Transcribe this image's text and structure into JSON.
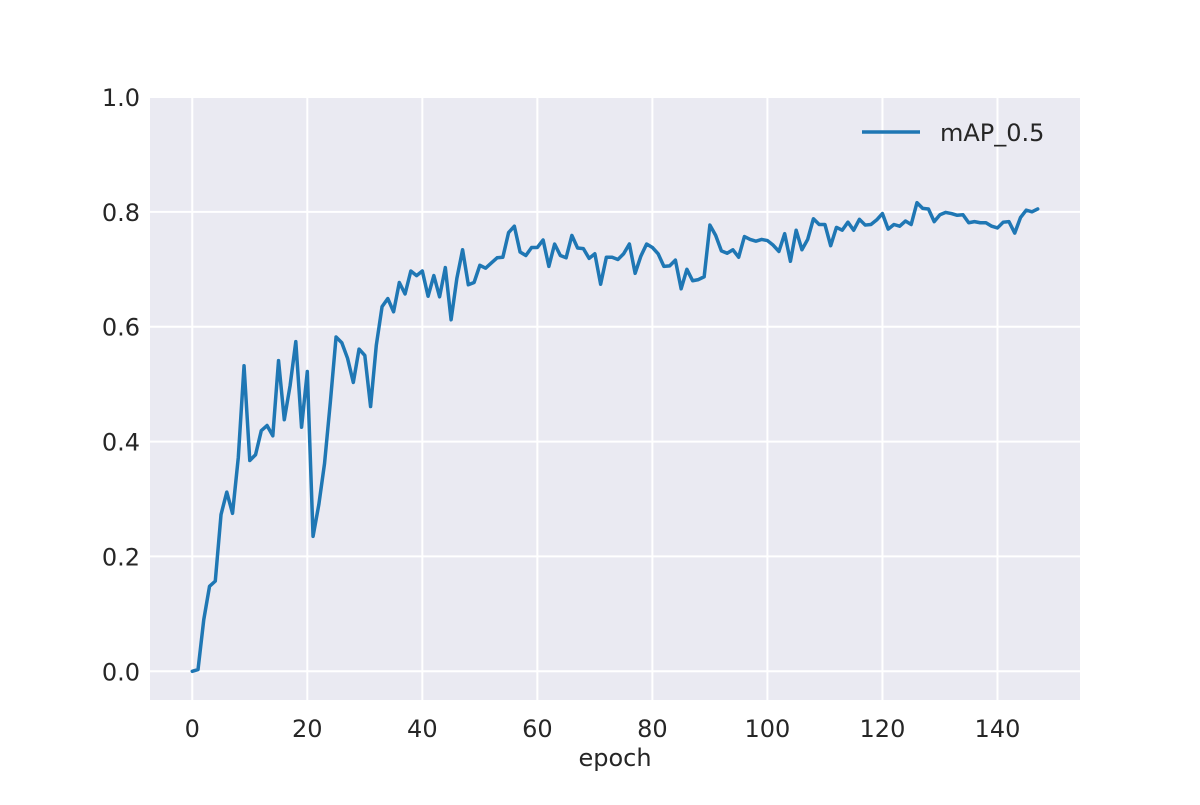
{
  "chart_data": {
    "type": "line",
    "title": "",
    "xlabel": "epoch",
    "ylabel": "",
    "xlim": [
      -7.35,
      154.35
    ],
    "ylim": [
      -0.05,
      1.0
    ],
    "xticks": [
      0,
      20,
      40,
      60,
      80,
      100,
      120,
      140
    ],
    "yticks": [
      0.0,
      0.2,
      0.4,
      0.6,
      0.8,
      1.0
    ],
    "xtick_labels": [
      "0",
      "20",
      "40",
      "60",
      "80",
      "100",
      "120",
      "140"
    ],
    "ytick_labels": [
      "0.0",
      "0.2",
      "0.4",
      "0.6",
      "0.8",
      "1.0"
    ],
    "grid": true,
    "legend_position": "top-right",
    "colors": {
      "background": "#eaeaf2",
      "grid": "#ffffff",
      "series": "#1f77b4"
    },
    "series": [
      {
        "name": "mAP_0.5",
        "x": [
          0,
          1,
          2,
          3,
          4,
          5,
          6,
          7,
          8,
          9,
          10,
          11,
          12,
          13,
          14,
          15,
          16,
          17,
          18,
          19,
          20,
          21,
          22,
          23,
          24,
          25,
          26,
          27,
          28,
          29,
          30,
          31,
          32,
          33,
          34,
          35,
          36,
          37,
          38,
          39,
          40,
          41,
          42,
          43,
          44,
          45,
          46,
          47,
          48,
          49,
          50,
          51,
          52,
          53,
          54,
          55,
          56,
          57,
          58,
          59,
          60,
          61,
          62,
          63,
          64,
          65,
          66,
          67,
          68,
          69,
          70,
          71,
          72,
          73,
          74,
          75,
          76,
          77,
          78,
          79,
          80,
          81,
          82,
          83,
          84,
          85,
          86,
          87,
          88,
          89,
          90,
          91,
          92,
          93,
          94,
          95,
          96,
          97,
          98,
          99,
          100,
          101,
          102,
          103,
          104,
          105,
          106,
          107,
          108,
          109,
          110,
          111,
          112,
          113,
          114,
          115,
          116,
          117,
          118,
          119,
          120,
          121,
          122,
          123,
          124,
          125,
          126,
          127,
          128,
          129,
          130,
          131,
          132,
          133,
          134,
          135,
          136,
          137,
          138,
          139,
          140,
          141,
          142,
          143,
          144,
          145,
          146,
          147
        ],
        "y": [
          0.0,
          0.003,
          0.09,
          0.148,
          0.157,
          0.273,
          0.312,
          0.275,
          0.372,
          0.532,
          0.367,
          0.377,
          0.419,
          0.428,
          0.41,
          0.541,
          0.438,
          0.497,
          0.574,
          0.425,
          0.522,
          0.235,
          0.29,
          0.362,
          0.468,
          0.582,
          0.572,
          0.545,
          0.503,
          0.561,
          0.55,
          0.461,
          0.568,
          0.635,
          0.649,
          0.626,
          0.677,
          0.657,
          0.697,
          0.689,
          0.697,
          0.653,
          0.689,
          0.652,
          0.703,
          0.612,
          0.684,
          0.734,
          0.673,
          0.677,
          0.707,
          0.702,
          0.711,
          0.72,
          0.721,
          0.764,
          0.775,
          0.73,
          0.724,
          0.738,
          0.738,
          0.751,
          0.705,
          0.744,
          0.724,
          0.72,
          0.759,
          0.737,
          0.736,
          0.719,
          0.727,
          0.674,
          0.721,
          0.721,
          0.717,
          0.727,
          0.744,
          0.693,
          0.723,
          0.744,
          0.738,
          0.727,
          0.705,
          0.706,
          0.716,
          0.666,
          0.7,
          0.68,
          0.682,
          0.687,
          0.777,
          0.759,
          0.732,
          0.728,
          0.734,
          0.721,
          0.757,
          0.752,
          0.749,
          0.752,
          0.75,
          0.742,
          0.731,
          0.762,
          0.714,
          0.768,
          0.734,
          0.752,
          0.788,
          0.778,
          0.778,
          0.741,
          0.773,
          0.768,
          0.782,
          0.768,
          0.787,
          0.777,
          0.778,
          0.786,
          0.797,
          0.77,
          0.778,
          0.775,
          0.784,
          0.778,
          0.816,
          0.806,
          0.805,
          0.783,
          0.795,
          0.799,
          0.797,
          0.794,
          0.795,
          0.781,
          0.783,
          0.781,
          0.781,
          0.775,
          0.772,
          0.782,
          0.783,
          0.763,
          0.79,
          0.803,
          0.8,
          0.805
        ]
      }
    ]
  }
}
